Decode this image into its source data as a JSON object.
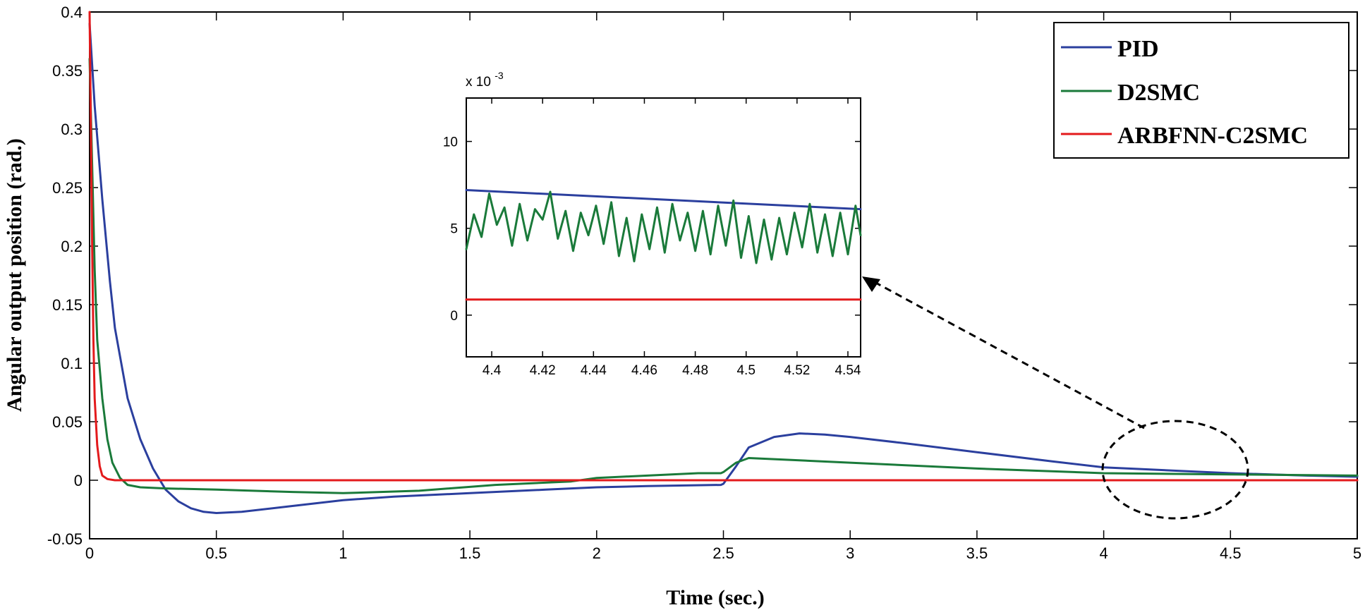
{
  "chart_data": {
    "type": "line",
    "title": "",
    "xlabel": "Time (sec.)",
    "ylabel": "Angular output position (rad.)",
    "xlim": [
      0,
      5
    ],
    "ylim": [
      -0.05,
      0.4
    ],
    "xticks": [
      0,
      0.5,
      1,
      1.5,
      2,
      2.5,
      3,
      3.5,
      4,
      4.5,
      5
    ],
    "xtick_labels": [
      "0",
      "0.5",
      "1",
      "1.5",
      "2",
      "2.5",
      "3",
      "3.5",
      "4",
      "4.5",
      "5"
    ],
    "yticks": [
      -0.05,
      0,
      0.05,
      0.1,
      0.15,
      0.2,
      0.25,
      0.3,
      0.35,
      0.4
    ],
    "ytick_labels": [
      "-0.05",
      "0",
      "0.05",
      "0.1",
      "0.15",
      "0.2",
      "0.25",
      "0.3",
      "0.35",
      "0.4"
    ],
    "legend": {
      "placement": "top-right"
    },
    "series": [
      {
        "name": "PID",
        "color": "#2b3f9e",
        "x": [
          0,
          0.02,
          0.05,
          0.08,
          0.1,
          0.15,
          0.2,
          0.25,
          0.3,
          0.35,
          0.4,
          0.45,
          0.5,
          0.6,
          0.8,
          1.0,
          1.2,
          1.5,
          1.8,
          2.0,
          2.2,
          2.49,
          2.5,
          2.55,
          2.6,
          2.7,
          2.8,
          2.9,
          3.0,
          3.2,
          3.5,
          3.8,
          4.0,
          4.3,
          4.5,
          4.8,
          5.0
        ],
        "y": [
          0.39,
          0.32,
          0.24,
          0.17,
          0.13,
          0.07,
          0.035,
          0.01,
          -0.008,
          -0.018,
          -0.024,
          -0.027,
          -0.028,
          -0.027,
          -0.022,
          -0.017,
          -0.014,
          -0.011,
          -0.008,
          -0.006,
          -0.005,
          -0.004,
          -0.003,
          0.012,
          0.028,
          0.037,
          0.04,
          0.039,
          0.037,
          0.032,
          0.024,
          0.016,
          0.011,
          0.008,
          0.006,
          0.004,
          0.003
        ]
      },
      {
        "name": "D2SMC",
        "color": "#1a7a3a",
        "x": [
          0,
          0.01,
          0.02,
          0.03,
          0.05,
          0.07,
          0.09,
          0.12,
          0.15,
          0.2,
          0.3,
          0.5,
          0.8,
          1.0,
          1.3,
          1.6,
          1.9,
          2.0,
          2.2,
          2.4,
          2.49,
          2.5,
          2.55,
          2.6,
          2.7,
          3.0,
          3.5,
          4.0,
          4.5,
          5.0
        ],
        "y": [
          0.36,
          0.27,
          0.18,
          0.12,
          0.07,
          0.035,
          0.015,
          0.002,
          -0.004,
          -0.006,
          -0.007,
          -0.008,
          -0.01,
          -0.011,
          -0.009,
          -0.004,
          -0.001,
          0.002,
          0.004,
          0.006,
          0.006,
          0.007,
          0.015,
          0.019,
          0.018,
          0.015,
          0.01,
          0.006,
          0.005,
          0.004
        ]
      },
      {
        "name": "ARBFNN-C2SMC",
        "color": "#e31a1c",
        "x": [
          0,
          0.005,
          0.01,
          0.015,
          0.02,
          0.03,
          0.04,
          0.05,
          0.07,
          0.1,
          2.5,
          5.0
        ],
        "y": [
          0.4,
          0.3,
          0.2,
          0.12,
          0.07,
          0.03,
          0.012,
          0.004,
          0.001,
          0.0,
          0.0,
          0.0
        ]
      }
    ],
    "inset": {
      "type": "line",
      "scale_label_base": "x 10",
      "scale_label_exp": "-3",
      "xlim": [
        4.39,
        4.545
      ],
      "ylim": [
        -2.4,
        12.5
      ],
      "xticks": [
        4.4,
        4.42,
        4.44,
        4.46,
        4.48,
        4.5,
        4.52,
        4.54
      ],
      "xtick_labels": [
        "4.4",
        "4.42",
        "4.44",
        "4.46",
        "4.48",
        "4.5",
        "4.52",
        "4.54"
      ],
      "yticks": [
        0,
        5,
        10
      ],
      "ytick_labels": [
        "0",
        "5",
        "10"
      ],
      "series": [
        {
          "name": "PID",
          "color": "#2b3f9e",
          "x": [
            4.39,
            4.545
          ],
          "y": [
            7.2,
            6.1
          ]
        },
        {
          "name": "D2SMC",
          "color": "#1a7a3a",
          "x": [
            4.39,
            4.393,
            4.396,
            4.399,
            4.402,
            4.405,
            4.408,
            4.411,
            4.414,
            4.417,
            4.42,
            4.423,
            4.426,
            4.429,
            4.432,
            4.435,
            4.438,
            4.441,
            4.444,
            4.447,
            4.45,
            4.453,
            4.456,
            4.459,
            4.462,
            4.465,
            4.468,
            4.471,
            4.474,
            4.477,
            4.48,
            4.483,
            4.486,
            4.489,
            4.492,
            4.495,
            4.498,
            4.501,
            4.504,
            4.507,
            4.51,
            4.513,
            4.516,
            4.519,
            4.522,
            4.525,
            4.528,
            4.531,
            4.534,
            4.537,
            4.54,
            4.543,
            4.545
          ],
          "y": [
            3.8,
            5.8,
            4.5,
            7.0,
            5.2,
            6.2,
            4.0,
            6.4,
            4.3,
            6.1,
            5.5,
            7.1,
            4.4,
            6.0,
            3.7,
            5.9,
            4.6,
            6.3,
            4.1,
            6.5,
            3.4,
            5.6,
            3.1,
            5.8,
            3.8,
            6.2,
            3.6,
            6.4,
            4.3,
            5.9,
            3.7,
            6.0,
            3.5,
            6.3,
            4.0,
            6.6,
            3.3,
            5.7,
            3.0,
            5.5,
            3.2,
            5.6,
            3.5,
            5.9,
            3.9,
            6.4,
            3.6,
            5.8,
            3.4,
            5.9,
            3.5,
            6.3,
            4.6
          ]
        },
        {
          "name": "ARBFNN-C2SMC",
          "color": "#e31a1c",
          "x": [
            4.39,
            4.545
          ],
          "y": [
            0.9,
            0.9
          ]
        }
      ]
    }
  }
}
